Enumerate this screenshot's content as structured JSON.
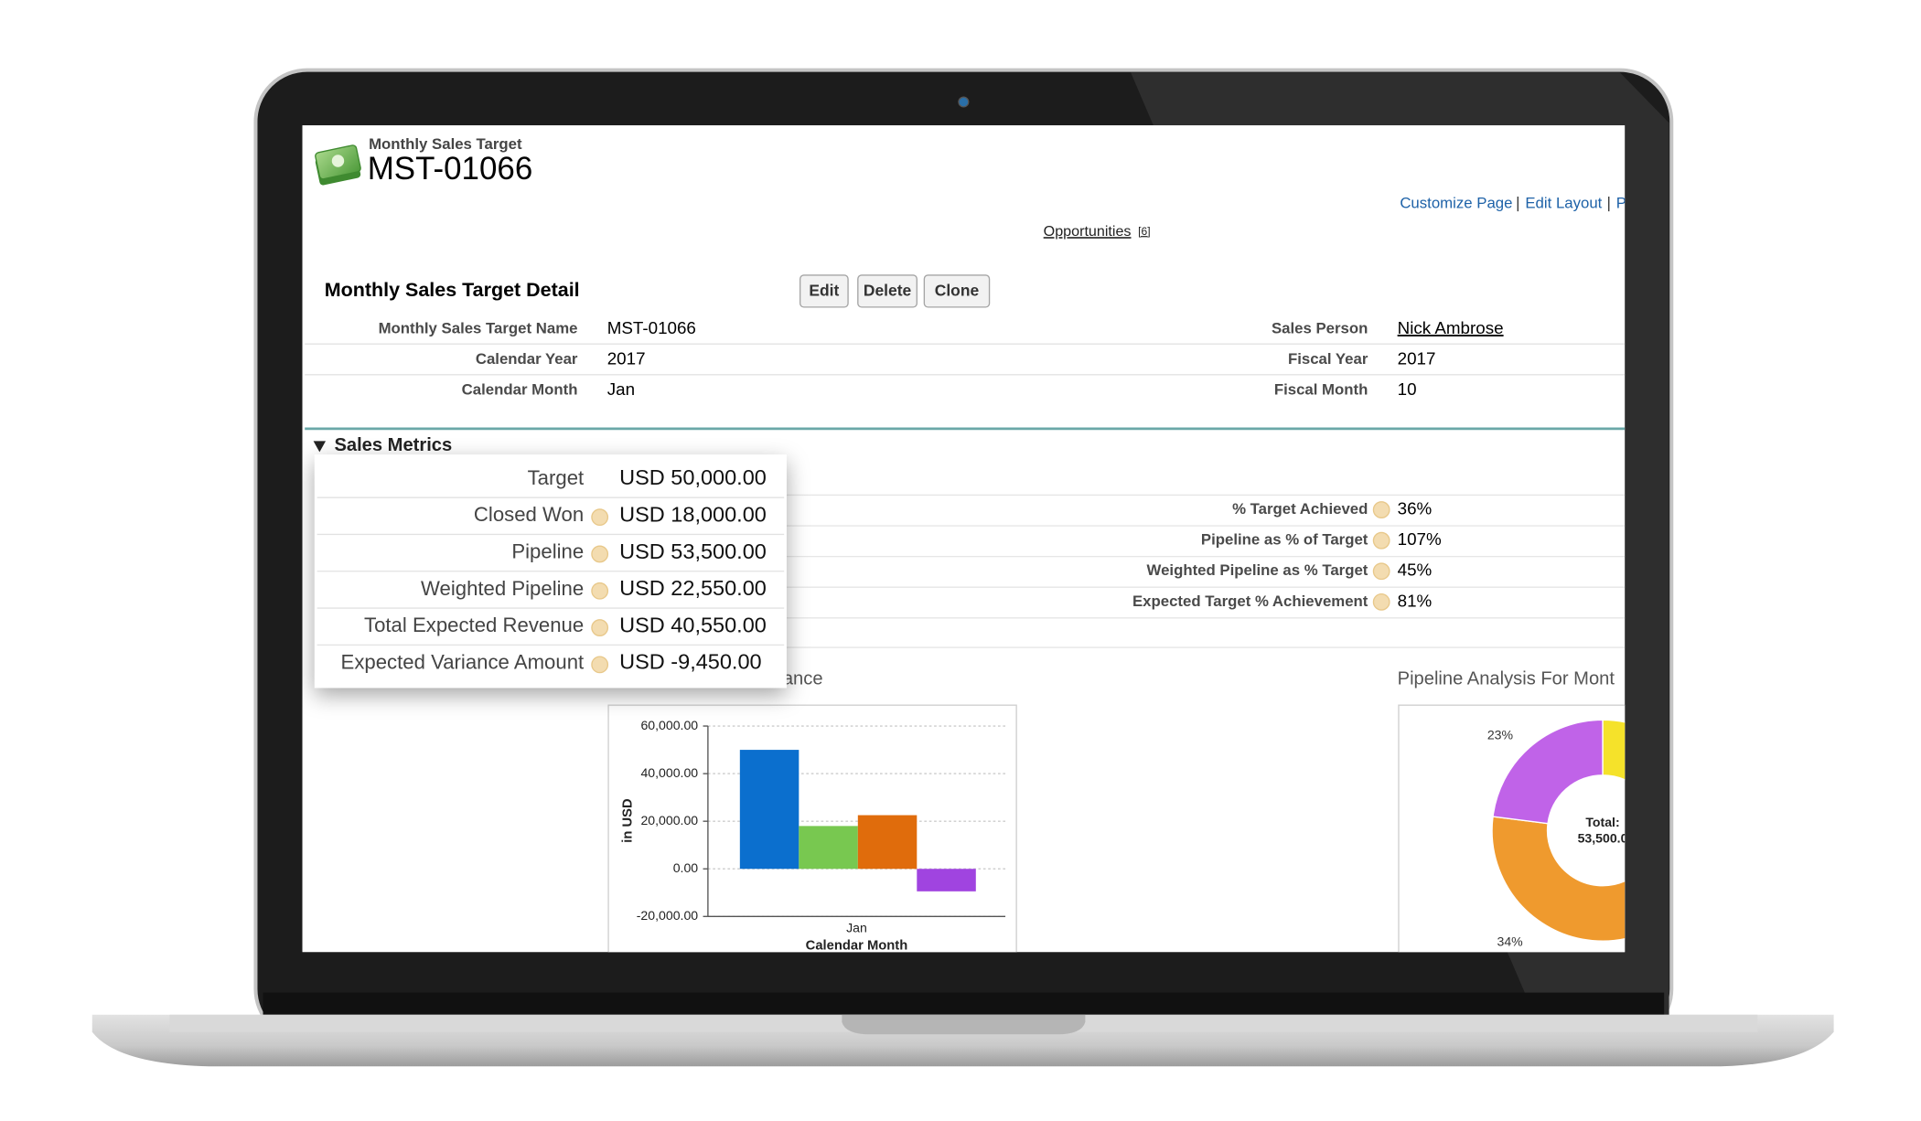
{
  "header": {
    "object_type": "Monthly Sales Target",
    "record_name": "MST-01066"
  },
  "top_links": [
    "Customize Page",
    "Edit Layout",
    "P"
  ],
  "related": {
    "label": "Opportunities",
    "count": "[6]"
  },
  "detail": {
    "title": "Monthly Sales Target Detail",
    "buttons": [
      "Edit",
      "Delete",
      "Clone"
    ],
    "left_fields": [
      {
        "label": "Monthly Sales Target Name",
        "value": "MST-01066"
      },
      {
        "label": "Calendar Year",
        "value": "2017"
      },
      {
        "label": "Calendar Month",
        "value": "Jan"
      }
    ],
    "right_fields": [
      {
        "label": "Sales Person",
        "value": "Nick Ambrose"
      },
      {
        "label": "Fiscal Year",
        "value": "2017"
      },
      {
        "label": "Fiscal Month",
        "value": "10"
      }
    ]
  },
  "sales_metrics": {
    "title": "Sales Metrics",
    "left": [
      {
        "label": "Target",
        "value": "USD 50,000.00"
      },
      {
        "label": "Closed Won",
        "value": "USD 18,000.00"
      },
      {
        "label": "Pipeline",
        "value": "USD 53,500.00"
      },
      {
        "label": "Weighted Pipeline",
        "value": "USD 22,550.00"
      },
      {
        "label": "Total Expected Revenue",
        "value": "USD 40,550.00"
      },
      {
        "label": "Expected Variance Amount",
        "value": "USD -9,450.00"
      }
    ],
    "right": [
      {
        "label": "% Target Achieved",
        "value": "36%"
      },
      {
        "label": "Pipeline as % of Target",
        "value": "107%"
      },
      {
        "label": "Weighted Pipeline as % Target",
        "value": "45%"
      },
      {
        "label": "Expected Target % Achievement",
        "value": "81%"
      }
    ]
  },
  "chart_data": [
    {
      "type": "bar",
      "title": "ance",
      "x_label": "Calendar Month",
      "y_label": "in USD",
      "categories": [
        "Jan"
      ],
      "series": [
        {
          "color": "#0b6fce",
          "values": [
            50000
          ]
        },
        {
          "color": "#78c850",
          "values": [
            18000
          ]
        },
        {
          "color": "#e06c0c",
          "values": [
            22550
          ]
        },
        {
          "color": "#a044e0",
          "values": [
            -9450
          ]
        }
      ],
      "ylim": [
        -20000,
        60000
      ],
      "yticks": [
        {
          "value": -20000,
          "label": "-20,000.00"
        },
        {
          "value": 0,
          "label": "0.00"
        },
        {
          "value": 20000,
          "label": "20,000.00"
        },
        {
          "value": 40000,
          "label": "40,000.00"
        },
        {
          "value": 60000,
          "label": "60,000.00"
        }
      ],
      "grid": true
    },
    {
      "type": "pie",
      "title": "Pipeline Analysis For Mont",
      "center_text": [
        "Total:",
        "53,500.0"
      ],
      "values": [
        43,
        34,
        23
      ],
      "value_labels": [
        null,
        "34%",
        "23%"
      ],
      "colors": [
        "#f5e22a",
        "#ef9a2e",
        "#c063e8"
      ],
      "hole": 0.5
    }
  ]
}
